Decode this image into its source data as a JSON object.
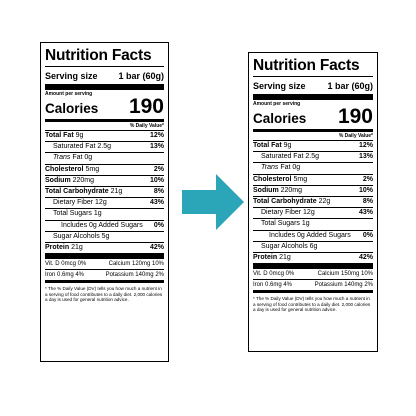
{
  "labels": [
    {
      "title": "Nutrition Facts",
      "serving_label": "Serving size",
      "serving_value": "1 bar (60g)",
      "amount_per_serving": "Amount per serving",
      "calories_label": "Calories",
      "calories_value": "190",
      "dv_header": "% Daily Value*",
      "total_fat": {
        "label": "Total Fat",
        "amount": "9g",
        "dv": "12%"
      },
      "saturated_fat": {
        "label": "Saturated Fat",
        "amount": "2.5g",
        "dv": "13%"
      },
      "trans_fat": {
        "label_italic": "Trans",
        "label": "Fat",
        "amount": "0g"
      },
      "cholesterol": {
        "label": "Cholesterol",
        "amount": "5mg",
        "dv": "2%"
      },
      "sodium": {
        "label": "Sodium",
        "amount": "220mg",
        "dv": "10%"
      },
      "total_carb": {
        "label": "Total Carbohydrate",
        "amount": "21g",
        "dv": "8%"
      },
      "fiber": {
        "label": "Dietary Fiber",
        "amount": "12g",
        "dv": "43%"
      },
      "total_sugars": {
        "label": "Total Sugars",
        "amount": "1g"
      },
      "added_sugars": {
        "label": "Includes 0g Added Sugars",
        "dv": "0%"
      },
      "sugar_alcohols": {
        "label": "Sugar Alcohols",
        "amount": "5g"
      },
      "protein": {
        "label": "Protein",
        "amount": "21g",
        "dv": "42%"
      },
      "vit_d": "Vit. D 0mcg 0%",
      "calcium": "Calcium 120mg 10%",
      "iron": "Iron 0.6mg 4%",
      "potassium": "Potassium 140mg 2%",
      "footnote": "* The % Daily Value (DV) tells you how much a nutrient in a serving of food contributes to a daily diet. 2,000 calories a day is used for general nutrition advice."
    },
    {
      "title": "Nutrition Facts",
      "serving_label": "Serving size",
      "serving_value": "1 bar (60g)",
      "amount_per_serving": "Amount per serving",
      "calories_label": "Calories",
      "calories_value": "190",
      "dv_header": "% Daily Value*",
      "total_fat": {
        "label": "Total Fat",
        "amount": "9g",
        "dv": "12%"
      },
      "saturated_fat": {
        "label": "Saturated Fat",
        "amount": "2.5g",
        "dv": "13%"
      },
      "trans_fat": {
        "label_italic": "Trans",
        "label": "Fat",
        "amount": "0g"
      },
      "cholesterol": {
        "label": "Cholesterol",
        "amount": "5mg",
        "dv": "2%"
      },
      "sodium": {
        "label": "Sodium",
        "amount": "220mg",
        "dv": "10%"
      },
      "total_carb": {
        "label": "Total Carbohydrate",
        "amount": "22g",
        "dv": "8%"
      },
      "fiber": {
        "label": "Dietary Fiber",
        "amount": "12g",
        "dv": "43%"
      },
      "total_sugars": {
        "label": "Total Sugars",
        "amount": "1g"
      },
      "added_sugars": {
        "label": "Includes 0g Added Sugars",
        "dv": "0%"
      },
      "sugar_alcohols": {
        "label": "Sugar Alcohols",
        "amount": "6g"
      },
      "protein": {
        "label": "Protein",
        "amount": "21g",
        "dv": "42%"
      },
      "vit_d": "Vit. D 0mcg 0%",
      "calcium": "Calcium 150mg 10%",
      "iron": "Iron 0.6mg 4%",
      "potassium": "Potassium 140mg 2%",
      "footnote": "* The % Daily Value (DV) tells you how much a nutrient in a serving of food contributes to a daily diet. 2,000 calories a day is used for general nutrition advice."
    }
  ],
  "arrow_color": "#2aa6b8",
  "arrow_icon": "arrow-right-icon"
}
